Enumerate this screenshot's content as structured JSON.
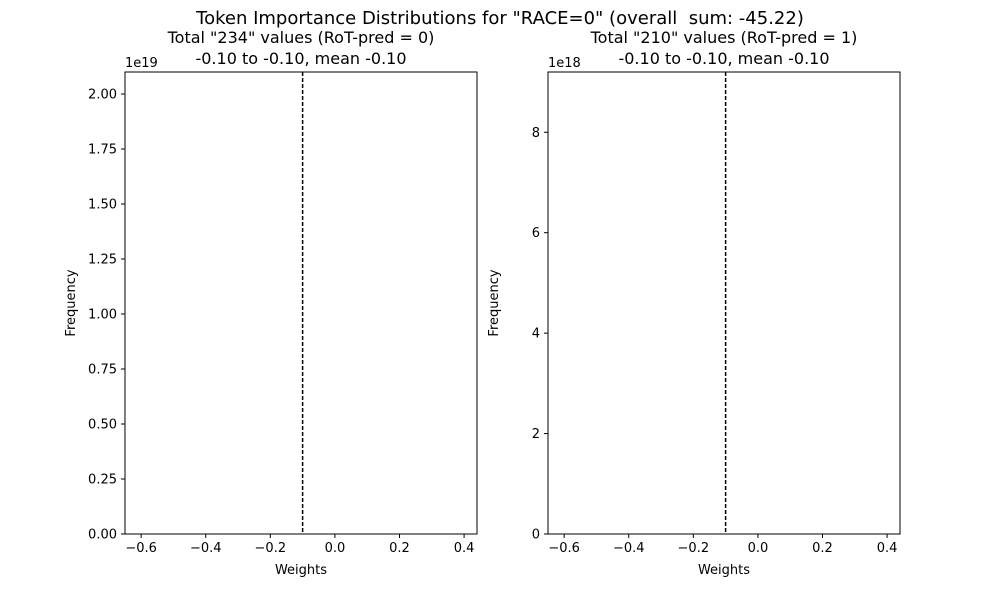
{
  "figure": {
    "title": "Token Importance Distributions for \"RACE=0\" (overall  sum: -45.22)"
  },
  "chart_data": [
    {
      "type": "histogram",
      "title_line1": "Total \"234\" values (RoT-pred = 0)",
      "title_line2": "-0.10 to -0.10, mean -0.10",
      "xlabel": "Weights",
      "ylabel": "Frequency",
      "offset_text": "1e19",
      "xlim": [
        -0.65,
        0.44
      ],
      "ylim": [
        0,
        2.1
      ],
      "xticks": [
        -0.6,
        -0.4,
        -0.2,
        0.0,
        0.2,
        0.4
      ],
      "xtick_labels": [
        "−0.6",
        "−0.4",
        "−0.2",
        "0.0",
        "0.2",
        "0.4"
      ],
      "yticks": [
        0,
        0.25,
        0.5,
        0.75,
        1.0,
        1.25,
        1.5,
        1.75,
        2.0
      ],
      "ytick_labels": [
        "0.00",
        "0.25",
        "0.50",
        "0.75",
        "1.00",
        "1.25",
        "1.50",
        "1.75",
        "2.00"
      ],
      "mean_line": -0.1,
      "grid": false
    },
    {
      "type": "histogram",
      "title_line1": "Total \"210\" values (RoT-pred = 1)",
      "title_line2": "-0.10 to -0.10, mean -0.10",
      "xlabel": "Weights",
      "ylabel": "Frequency",
      "offset_text": "1e18",
      "xlim": [
        -0.65,
        0.44
      ],
      "ylim": [
        0,
        9.2
      ],
      "xticks": [
        -0.6,
        -0.4,
        -0.2,
        0.0,
        0.2,
        0.4
      ],
      "xtick_labels": [
        "−0.6",
        "−0.4",
        "−0.2",
        "0.0",
        "0.2",
        "0.4"
      ],
      "yticks": [
        0,
        2,
        4,
        6,
        8
      ],
      "ytick_labels": [
        "0",
        "2",
        "4",
        "6",
        "8"
      ],
      "mean_line": -0.1,
      "grid": false
    }
  ]
}
